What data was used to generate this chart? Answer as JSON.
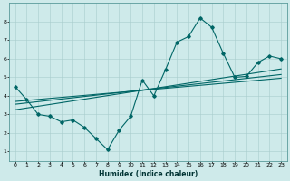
{
  "xlabel": "Humidex (Indice chaleur)",
  "bg_color": "#ceeaea",
  "line_color": "#006666",
  "grid_color": "#a8cccc",
  "xlim": [
    -0.5,
    23.5
  ],
  "ylim": [
    0.5,
    9.0
  ],
  "xticks": [
    0,
    1,
    2,
    3,
    4,
    5,
    6,
    7,
    8,
    9,
    10,
    11,
    12,
    13,
    14,
    15,
    16,
    17,
    18,
    19,
    20,
    21,
    22,
    23
  ],
  "yticks": [
    1,
    2,
    3,
    4,
    5,
    6,
    7,
    8
  ],
  "main_curve_x": [
    0,
    1,
    2,
    3,
    4,
    5,
    6,
    7,
    8,
    9,
    10,
    11,
    12,
    13,
    14,
    15,
    16,
    17,
    18,
    19,
    20,
    21,
    22,
    23
  ],
  "main_curve_y": [
    4.5,
    3.8,
    3.0,
    2.9,
    2.6,
    2.7,
    2.3,
    1.7,
    1.1,
    2.15,
    2.9,
    4.85,
    4.0,
    5.4,
    6.9,
    7.2,
    8.2,
    7.7,
    6.3,
    5.0,
    5.05,
    5.8,
    6.15,
    6.0
  ],
  "regression_lines": [
    {
      "x": [
        0,
        23
      ],
      "y": [
        3.55,
        5.15
      ]
    },
    {
      "x": [
        0,
        23
      ],
      "y": [
        3.25,
        5.45
      ]
    },
    {
      "x": [
        0,
        23
      ],
      "y": [
        3.7,
        4.95
      ]
    }
  ],
  "tick_fontsize": 4.5,
  "xlabel_fontsize": 5.5,
  "marker_size": 1.8,
  "line_width": 0.8
}
